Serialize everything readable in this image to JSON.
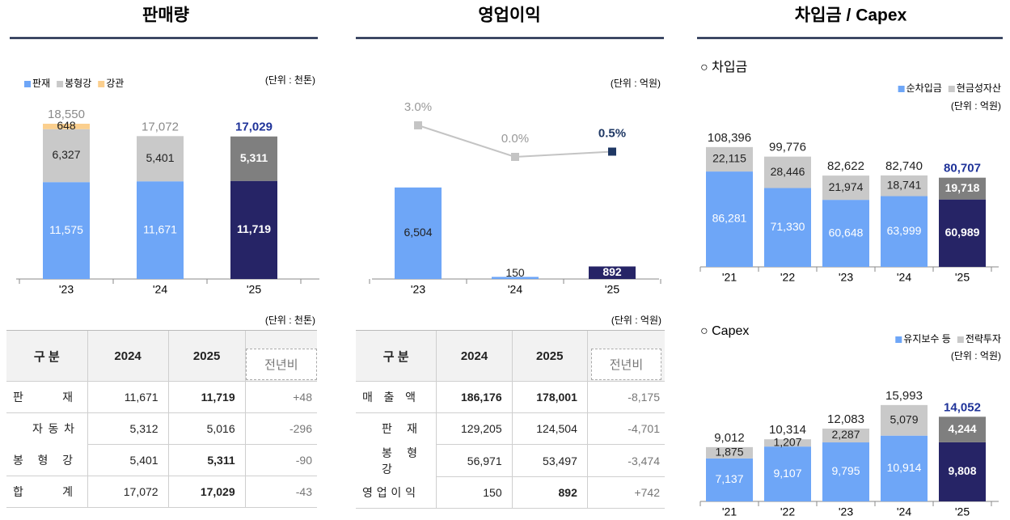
{
  "headings": [
    "판매량",
    "영업이익",
    "차입금 / Capex"
  ],
  "chart_data": [
    {
      "type": "stacked_bar",
      "unit": "(단위 : 천톤)",
      "legend": "upper left",
      "categories": [
        "'23",
        "'24",
        "'25"
      ],
      "ylim": [
        0,
        20000
      ],
      "series": [
        {
          "name": "판재",
          "color": "#6ea6f7",
          "highlight_color": "#262466",
          "values": [
            11575,
            11671,
            11719
          ],
          "value_labels": [
            "11,575",
            "11,671",
            "11,719"
          ]
        },
        {
          "name": "봉형강",
          "color": "#c9c9c9",
          "highlight_color": "#7f7f7f",
          "values": [
            6327,
            5401,
            5311
          ],
          "value_labels": [
            "6,327",
            "5,401",
            "5,311"
          ]
        },
        {
          "name": "강관",
          "color": "#fbcf8e",
          "values": [
            648,
            null,
            null
          ]
        }
      ],
      "totals": [
        18550,
        17072,
        17029
      ],
      "total_labels": [
        "18,550",
        "17,072",
        "17,029"
      ]
    },
    {
      "type": "bar_line",
      "unit": "(단위 : 억원)",
      "categories": [
        "'23",
        "'24",
        "'25"
      ],
      "ylim": [
        0,
        10000
      ],
      "y2lim": [
        -1,
        4
      ],
      "values": [
        6504,
        150,
        892
      ],
      "value_labels": [
        "6,504",
        "150",
        "892"
      ],
      "color": "#6ea6f7",
      "highlight_color": "#262466",
      "line": {
        "axis": "y2",
        "color": "#c4c4c4",
        "highlight_color": "#1f3864",
        "values": [
          3.0,
          0.0,
          0.5
        ],
        "value_labels": [
          "3.0%",
          "0.0%",
          "0.5%"
        ]
      }
    },
    {
      "type": "stacked_bar",
      "title": "○ 차입금",
      "unit": "(단위 : 억원)",
      "legend": "upper right",
      "categories": [
        "'21",
        "'22",
        "'23",
        "'24",
        "'25"
      ],
      "ylim": [
        0,
        120000
      ],
      "series": [
        {
          "name": "순차입금",
          "color": "#6ea6f7",
          "highlight_color": "#262466",
          "values": [
            86281,
            71330,
            60648,
            63999,
            60989
          ],
          "value_labels": [
            "86,281",
            "71,330",
            "60,648",
            "63,999",
            "60,989"
          ]
        },
        {
          "name": "현금성자산",
          "color": "#c9c9c9",
          "highlight_color": "#7f7f7f",
          "values": [
            22115,
            28446,
            21974,
            18741,
            19718
          ],
          "value_labels": [
            "22,115",
            "28,446",
            "21,974",
            "18,741",
            "19,718"
          ]
        }
      ],
      "totals": [
        108396,
        99776,
        82622,
        82740,
        80707
      ],
      "total_labels": [
        "108,396",
        "99,776",
        "82,622",
        "82,740",
        "80,707"
      ]
    },
    {
      "type": "stacked_bar",
      "title": "○ Capex",
      "unit": "(단위 : 억원)",
      "legend": "upper right",
      "categories": [
        "'21",
        "'22",
        "'23",
        "'24",
        "'25"
      ],
      "ylim": [
        0,
        20000
      ],
      "series": [
        {
          "name": "유지보수 등",
          "color": "#6ea6f7",
          "highlight_color": "#262466",
          "values": [
            7137,
            9107,
            9795,
            10914,
            9808
          ],
          "value_labels": [
            "7,137",
            "9,107",
            "9,795",
            "10,914",
            "9,808"
          ]
        },
        {
          "name": "전략투자",
          "color": "#c9c9c9",
          "highlight_color": "#7f7f7f",
          "values": [
            1875,
            1207,
            2287,
            5079,
            4244
          ],
          "value_labels": [
            "1,875",
            "1,207",
            "2,287",
            "5,079",
            "4,244"
          ]
        }
      ],
      "totals": [
        9012,
        10314,
        12083,
        15993,
        14052
      ],
      "total_labels": [
        "9,012",
        "10,314",
        "12,083",
        "15,993",
        "14,052"
      ]
    }
  ],
  "tables": [
    {
      "unit": "(단위 : 천톤)",
      "header": [
        "구 분",
        "2024",
        "2025",
        "전년비"
      ],
      "rows": [
        [
          "판 재",
          "11,671",
          "11,719",
          "+48"
        ],
        [
          "자 동 차",
          "5,312",
          "5,016",
          "-296"
        ],
        [
          "봉 형 강",
          "5,401",
          "5,311",
          "-90"
        ],
        [
          "합 계",
          "17,072",
          "17,029",
          "-43"
        ]
      ]
    },
    {
      "unit": "(단위 : 억원)",
      "header": [
        "구 분",
        "2024",
        "2025",
        "전년비"
      ],
      "rows": [
        [
          "매 출 액",
          "186,176",
          "178,001",
          "-8,175"
        ],
        [
          "판 재",
          "129,205",
          "124,504",
          "-4,701"
        ],
        [
          "봉 형 강",
          "56,971",
          "53,497",
          "-3,474"
        ],
        [
          "영 업 이 익",
          "150",
          "892",
          "+742"
        ]
      ]
    }
  ]
}
